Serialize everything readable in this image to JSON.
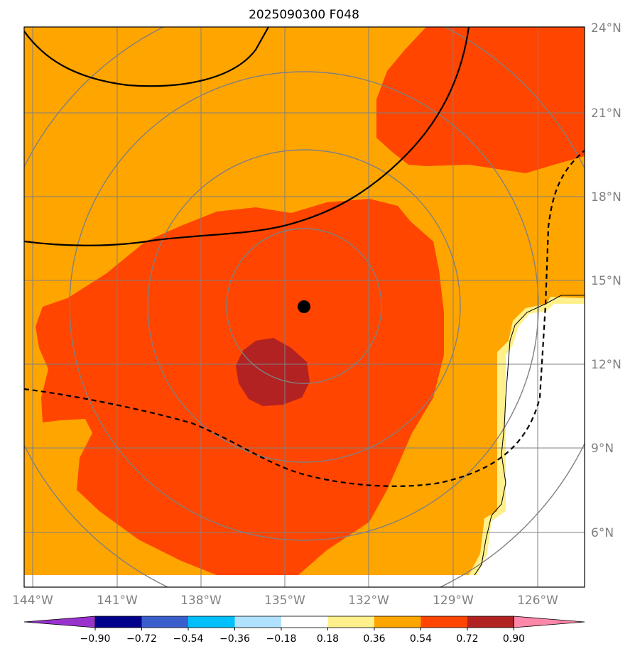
{
  "title": "2025090300 F048",
  "map": {
    "lat_ticks": [
      "24°N",
      "21°N",
      "18°N",
      "15°N",
      "12°N",
      "9°N",
      "6°N"
    ],
    "lon_ticks": [
      "144°W",
      "141°W",
      "138°W",
      "135°W",
      "132°W",
      "129°W",
      "126°W"
    ],
    "storm_center_icon": "filled-circle-marker",
    "range_rings": 4
  },
  "colorbar": {
    "tick_labels": [
      "−0.90",
      "−0.72",
      "−0.54",
      "−0.36",
      "−0.18",
      "0.18",
      "0.36",
      "0.54",
      "0.72",
      "0.90"
    ],
    "colors": [
      "#9932cc",
      "#00008b",
      "#3a5fcd",
      "#00bfff",
      "#b0e2ff",
      "#ffffff",
      "#fff08c",
      "#ffa500",
      "#ff4500",
      "#b22222",
      "#ff88aa"
    ]
  },
  "colors": {
    "field_low": "#fff08c",
    "field_mid": "#ffa500",
    "field_high": "#ff4500",
    "field_max": "#b22222",
    "grid": "#808080",
    "contour": "#000000"
  }
}
